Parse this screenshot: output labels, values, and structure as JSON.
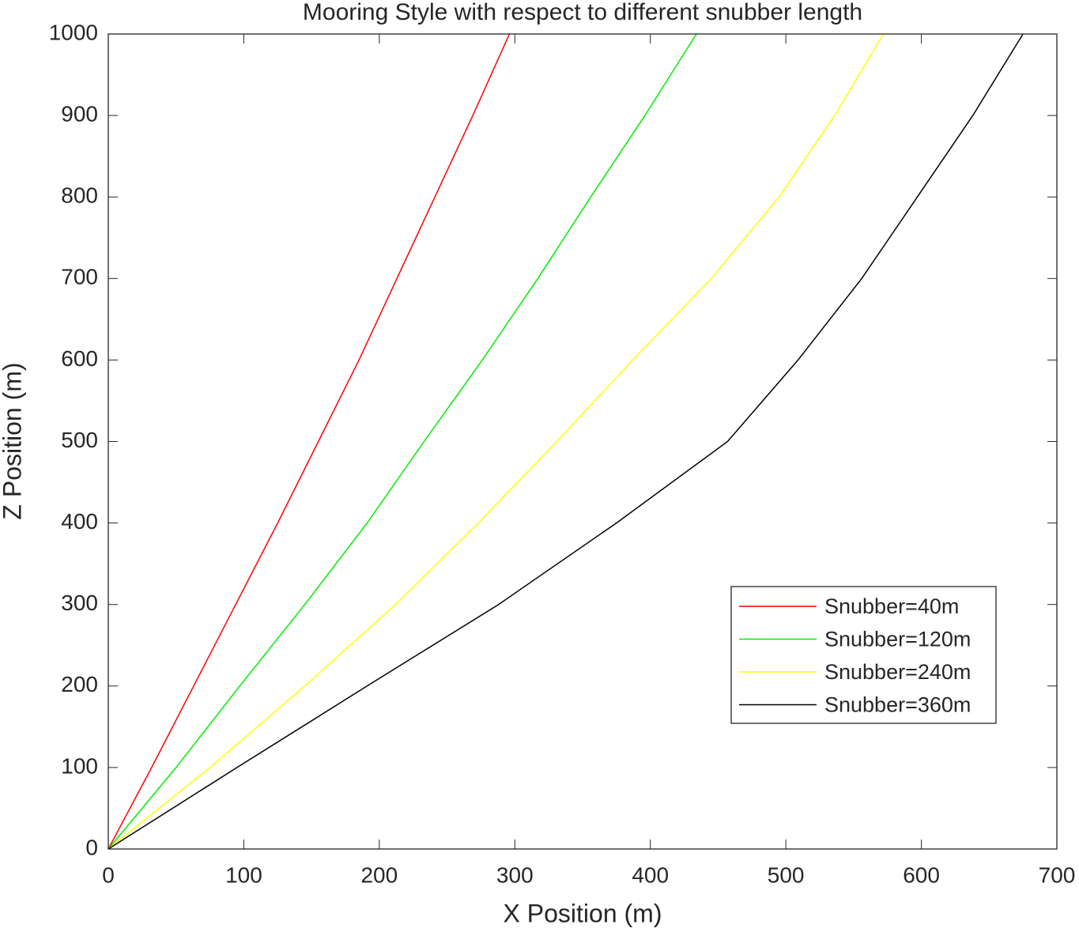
{
  "chart_data": {
    "type": "line",
    "title": "Mooring Style with respect to different snubber length",
    "x_label": "X Position (m)",
    "y_label": "Z Position (m)",
    "xlim": [
      0,
      700
    ],
    "xticks": [
      0,
      100,
      200,
      300,
      400,
      500,
      600,
      700
    ],
    "ylim": [
      0,
      1000
    ],
    "yticks": [
      0,
      100,
      200,
      300,
      400,
      500,
      600,
      700,
      800,
      900,
      1000
    ],
    "grid": false,
    "legend_location": "southeast",
    "series": [
      {
        "name": "Snubber=40m",
        "color": "#ff0000",
        "x": [
          0,
          32,
          63,
          94,
          125,
          155,
          185,
          213,
          241,
          269,
          296
        ],
        "values": [
          0,
          100,
          200,
          300,
          400,
          500,
          600,
          700,
          800,
          900,
          1000
        ]
      },
      {
        "name": "Snubber=120m",
        "color": "#00ee00",
        "x": [
          0,
          50,
          97,
          145,
          191,
          233,
          276,
          317,
          356,
          396,
          434
        ],
        "values": [
          0,
          100,
          200,
          300,
          400,
          500,
          600,
          700,
          800,
          900,
          1000
        ]
      },
      {
        "name": "Snubber=240m",
        "color": "#ffff00",
        "x": [
          0,
          75,
          145,
          212,
          273,
          331,
          387,
          445,
          495,
          536,
          572
        ],
        "values": [
          0,
          100,
          200,
          300,
          400,
          500,
          600,
          700,
          800,
          900,
          1000
        ]
      },
      {
        "name": "Snubber=360m",
        "color": "#000000",
        "x": [
          0,
          95,
          191,
          288,
          375,
          457,
          509,
          556,
          597,
          638,
          675
        ],
        "values": [
          0,
          100,
          200,
          300,
          400,
          500,
          600,
          700,
          800,
          900,
          1000
        ]
      }
    ]
  }
}
